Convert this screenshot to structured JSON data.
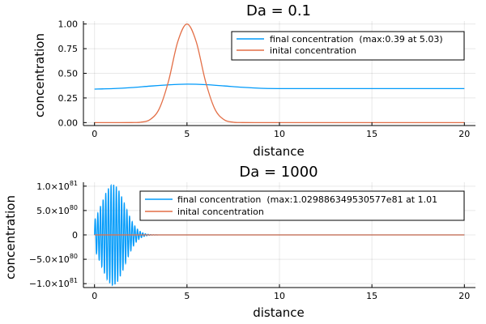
{
  "chart_data": [
    {
      "type": "line",
      "title": "Da = 0.1",
      "xlabel": "distance",
      "ylabel": "concentration",
      "xlim": [
        -0.6,
        20.6
      ],
      "ylim": [
        -0.03,
        1.03
      ],
      "xticks": [
        0,
        5,
        10,
        15,
        20
      ],
      "xtick_labels": [
        "0",
        "5",
        "10",
        "15",
        "20"
      ],
      "yticks": [
        0.0,
        0.25,
        0.5,
        0.75,
        1.0
      ],
      "ytick_labels": [
        "0.00",
        "0.25",
        "0.50",
        "0.75",
        "1.00"
      ],
      "grid": true,
      "legend_position": "top-right",
      "series": [
        {
          "name": "final concentration  (max:0.39 at 5.03)",
          "color": "#009AFA",
          "x": [
            0,
            1,
            2,
            3,
            4,
            5,
            6,
            7,
            8,
            9,
            10,
            11,
            12,
            13,
            14,
            15,
            16,
            17,
            18,
            19,
            20
          ],
          "y": [
            0.34,
            0.345,
            0.355,
            0.37,
            0.383,
            0.39,
            0.385,
            0.372,
            0.358,
            0.348,
            0.345,
            0.345,
            0.345,
            0.345,
            0.345,
            0.345,
            0.345,
            0.345,
            0.345,
            0.345,
            0.345
          ]
        },
        {
          "name": "inital concentration",
          "color": "#E36F47",
          "x": [
            0,
            1,
            2,
            2.5,
            3,
            3.5,
            4,
            4.5,
            5,
            5.5,
            6,
            6.5,
            7,
            7.5,
            8,
            9,
            10,
            15,
            20
          ],
          "y": [
            0,
            0,
            0.0004,
            0.004,
            0.03,
            0.14,
            0.42,
            0.82,
            1.0,
            0.82,
            0.42,
            0.14,
            0.03,
            0.004,
            0.0004,
            0,
            0,
            0,
            0
          ]
        }
      ]
    },
    {
      "type": "line",
      "title": "Da = 1000",
      "xlabel": "distance",
      "ylabel": "concentration",
      "xlim": [
        -0.6,
        20.6
      ],
      "ylim": [
        -1.08e+81,
        1.08e+81
      ],
      "xticks": [
        0,
        5,
        10,
        15,
        20
      ],
      "xtick_labels": [
        "0",
        "5",
        "10",
        "15",
        "20"
      ],
      "yticks": [
        -1e+81,
        -5e+80,
        0,
        5e+80,
        1e+81
      ],
      "ytick_labels": [
        {
          "mant": "−1.0×10",
          "exp": "81"
        },
        {
          "mant": "−5.0×10",
          "exp": "80"
        },
        {
          "mant": "0",
          "exp": ""
        },
        {
          "mant": "5.0×10",
          "exp": "80"
        },
        {
          "mant": "1.0×10",
          "exp": "81"
        }
      ],
      "grid": true,
      "legend_position": "top-right",
      "series": [
        {
          "name": "final concentration  (max:1.029886349530577e81 at 1.01",
          "color": "#009AFA",
          "oscillation": {
            "x_start": 0,
            "x_end": 3.6,
            "period": 0.143,
            "envelope_center": 1.0,
            "envelope_width": 0.9,
            "amplitude": 1.029886349530577e+81
          },
          "tail": {
            "x": [
              3.6,
              20
            ],
            "y": [
              0,
              0
            ]
          }
        },
        {
          "name": "inital concentration",
          "color": "#E36F47",
          "x": [
            0,
            20
          ],
          "y": [
            0,
            0
          ]
        }
      ]
    }
  ]
}
